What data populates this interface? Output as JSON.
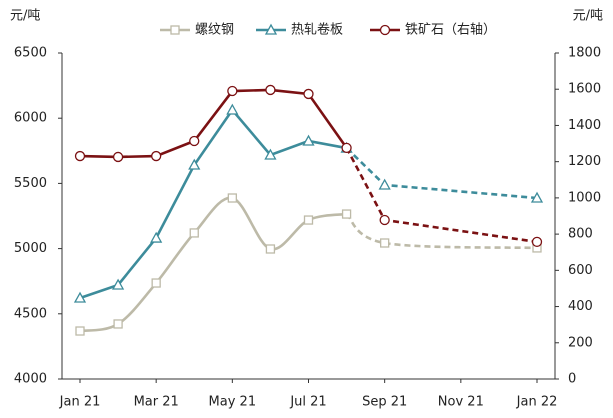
{
  "chart_data": {
    "type": "line",
    "y_label": "元/吨",
    "y2_label": "元/吨",
    "categories": [
      "Jan 21",
      null,
      "Mar 21",
      null,
      "May 21",
      null,
      "Jul 21",
      null,
      "Sep 21",
      null,
      "Nov 21",
      null,
      "Jan 22"
    ],
    "series": [
      {
        "name": "螺纹钢",
        "color": "#bdbaa8",
        "marker": "square",
        "smooth": true,
        "values": [
          4368,
          4422,
          4736,
          5120,
          5388,
          4997,
          5219,
          5265,
          5043,
          null,
          null,
          null,
          5005
        ]
      },
      {
        "name": "热轧卷板",
        "color": "#3d8c9b",
        "marker": "triangle",
        "smooth": false,
        "values": [
          4621,
          4721,
          5081,
          5641,
          6063,
          5718,
          5825,
          5771,
          5488,
          null,
          null,
          null,
          5388
        ]
      },
      {
        "name": "铁矿石（右轴）",
        "color": "#7b1113",
        "marker": "circle",
        "smooth": false,
        "axis": "y2",
        "values": [
          1231,
          1226,
          1231,
          1314,
          1590,
          1596,
          1574,
          1276,
          878,
          null,
          null,
          null,
          757
        ]
      }
    ],
    "dashed_from": 7,
    "connect_gaps": true,
    "ylim": [
      4000,
      6500
    ],
    "yticks": [
      4000,
      4500,
      5000,
      5500,
      6000,
      6500
    ],
    "y2lim": [
      0,
      1800
    ],
    "y2ticks": [
      0,
      200,
      400,
      600,
      800,
      1000,
      1200,
      1400,
      1600,
      1800
    ],
    "grid": false,
    "legend": "top"
  }
}
